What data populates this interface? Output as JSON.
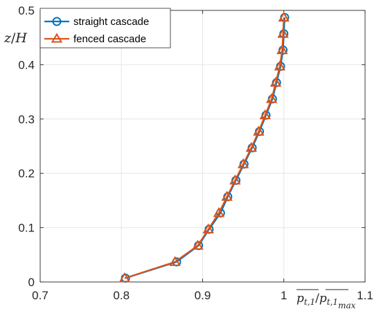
{
  "chart_data": {
    "type": "line",
    "xlim": [
      0.7,
      1.1
    ],
    "ylim": [
      0,
      0.5
    ],
    "x_ticks": [
      0.7,
      0.8,
      0.9,
      1,
      1.1
    ],
    "y_ticks": [
      0,
      0.1,
      0.2,
      0.3,
      0.4,
      0.5
    ],
    "x_tick_labels": [
      "0.7",
      "0.8",
      "0.9",
      "1",
      "1.1"
    ],
    "y_tick_labels": [
      "0",
      "0.1",
      "0.2",
      "0.3",
      "0.4",
      "0.5"
    ],
    "xlabel": "p_{t,1}/p_{t,1 max}",
    "ylabel": "z/H",
    "grid": true,
    "legend_position": "top-left",
    "series": [
      {
        "name": "straight cascade",
        "color": "#0072BD",
        "marker": "circle",
        "x": [
          0.805,
          0.868,
          0.895,
          0.908,
          0.922,
          0.931,
          0.941,
          0.951,
          0.961,
          0.97,
          0.978,
          0.986,
          0.991,
          0.996,
          0.999,
          1.0,
          1.001
        ],
        "y": [
          0.007,
          0.037,
          0.067,
          0.097,
          0.127,
          0.157,
          0.187,
          0.217,
          0.247,
          0.277,
          0.307,
          0.337,
          0.367,
          0.397,
          0.427,
          0.457,
          0.487
        ]
      },
      {
        "name": "fenced cascade",
        "color": "#D95319",
        "marker": "triangle",
        "x": [
          0.804,
          0.866,
          0.894,
          0.907,
          0.92,
          0.93,
          0.94,
          0.95,
          0.96,
          0.969,
          0.977,
          0.985,
          0.99,
          0.995,
          0.998,
          0.999,
          1.0
        ],
        "y": [
          0.007,
          0.037,
          0.067,
          0.097,
          0.127,
          0.157,
          0.187,
          0.217,
          0.247,
          0.277,
          0.307,
          0.337,
          0.367,
          0.397,
          0.427,
          0.457,
          0.487
        ]
      }
    ]
  }
}
